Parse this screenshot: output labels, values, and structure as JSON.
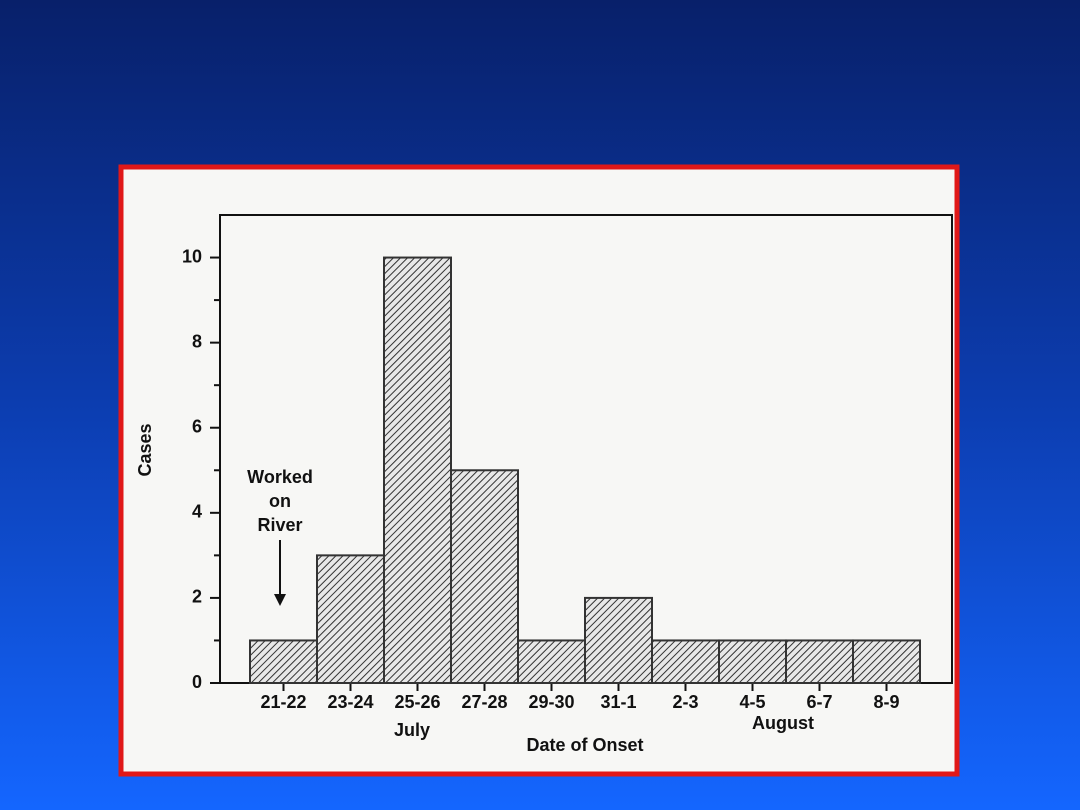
{
  "chart_data": {
    "type": "bar",
    "y_label": "Cases",
    "x_label": "Date of Onset",
    "categories": [
      "21-22",
      "23-24",
      "25-26",
      "27-28",
      "29-30",
      "31-1",
      "2-3",
      "4-5",
      "6-7",
      "8-9"
    ],
    "values": [
      1,
      3,
      10,
      5,
      1,
      2,
      1,
      1,
      1,
      1
    ],
    "color": "#333333",
    "months": [
      "July",
      "August"
    ],
    "annotation": [
      "Worked",
      "on",
      "River"
    ],
    "ylim": [
      0,
      11
    ],
    "yticks": [
      0,
      2,
      4,
      6,
      8,
      10
    ],
    "minor_yticks": [
      1,
      3,
      5,
      7,
      9
    ],
    "grid": false
  }
}
